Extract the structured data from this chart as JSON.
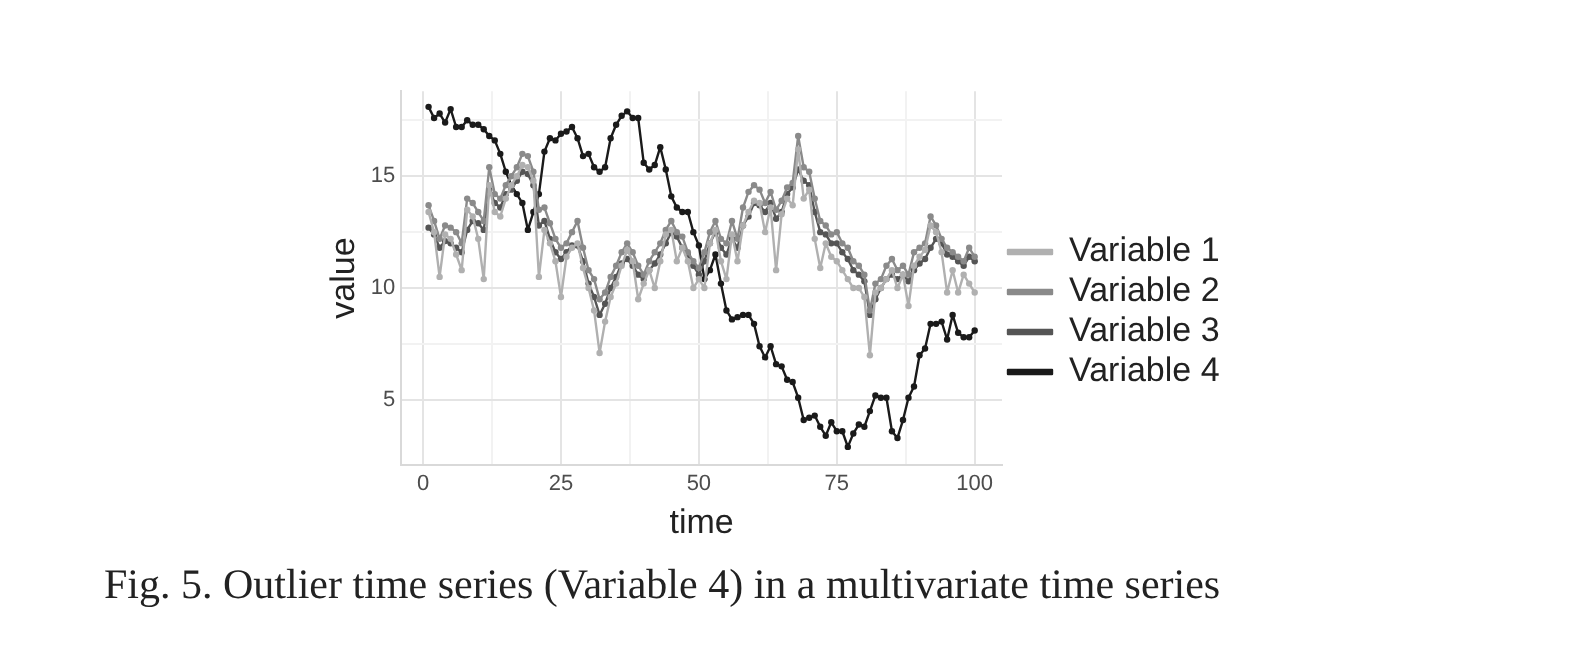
{
  "chart_data": {
    "type": "line",
    "xlabel": "time",
    "ylabel": "value",
    "annotations": [
      "Fig. 5.  Outlier time series (Variable 4) in a multivariate time series"
    ],
    "x": [
      1,
      2,
      3,
      4,
      5,
      6,
      7,
      8,
      9,
      10,
      11,
      12,
      13,
      14,
      15,
      16,
      17,
      18,
      19,
      20,
      21,
      22,
      23,
      24,
      25,
      26,
      27,
      28,
      29,
      30,
      31,
      32,
      33,
      34,
      35,
      36,
      37,
      38,
      39,
      40,
      41,
      42,
      43,
      44,
      45,
      46,
      47,
      48,
      49,
      50,
      51,
      52,
      53,
      54,
      55,
      56,
      57,
      58,
      59,
      60,
      61,
      62,
      63,
      64,
      65,
      66,
      67,
      68,
      69,
      70,
      71,
      72,
      73,
      74,
      75,
      76,
      77,
      78,
      79,
      80,
      81,
      82,
      83,
      84,
      85,
      86,
      87,
      88,
      89,
      90,
      91,
      92,
      93,
      94,
      95,
      96,
      97,
      98,
      99,
      100
    ],
    "series": [
      {
        "name": "Variable 1",
        "color": "#b0b0b0",
        "values": [
          13.4,
          12.5,
          10.5,
          12.4,
          12.2,
          11.5,
          10.8,
          13.5,
          13.2,
          12.2,
          10.4,
          14.6,
          13.4,
          13.2,
          14.0,
          14.6,
          15.0,
          15.5,
          15.4,
          14.8,
          10.5,
          12.6,
          12.0,
          11.2,
          9.6,
          11.4,
          11.8,
          12.0,
          10.9,
          10.0,
          9.0,
          7.1,
          8.5,
          9.6,
          10.2,
          11.0,
          11.7,
          11.2,
          9.5,
          10.2,
          10.8,
          10.0,
          11.2,
          12.4,
          12.6,
          11.2,
          11.8,
          11.2,
          10.0,
          10.4,
          10.0,
          12.0,
          12.6,
          11.2,
          10.4,
          12.4,
          11.2,
          12.8,
          13.4,
          13.9,
          13.8,
          12.5,
          13.6,
          10.8,
          13.3,
          14.0,
          13.7,
          16.2,
          14.0,
          14.4,
          12.2,
          10.9,
          12.0,
          11.4,
          11.2,
          10.8,
          10.4,
          10.0,
          10.0,
          9.6,
          7.0,
          9.8,
          10.0,
          10.4,
          10.8,
          10.0,
          10.6,
          9.2,
          11.0,
          11.4,
          11.7,
          12.8,
          12.5,
          11.6,
          9.8,
          10.8,
          9.8,
          10.6,
          10.2,
          9.8
        ]
      },
      {
        "name": "Variable 2",
        "color": "#8a8a8a",
        "values": [
          13.7,
          13.0,
          12.2,
          12.8,
          12.7,
          12.5,
          12.0,
          14.0,
          13.8,
          13.4,
          13.0,
          15.4,
          14.2,
          14.0,
          14.6,
          15.0,
          15.4,
          16.0,
          15.9,
          15.2,
          13.5,
          13.6,
          12.9,
          12.2,
          11.8,
          12.0,
          12.5,
          13.0,
          11.8,
          10.8,
          10.4,
          9.5,
          9.8,
          10.5,
          11.0,
          11.6,
          12.0,
          11.6,
          11.0,
          10.6,
          11.2,
          11.6,
          12.0,
          12.6,
          13.0,
          12.5,
          12.3,
          11.6,
          11.2,
          10.9,
          11.6,
          12.5,
          13.0,
          12.2,
          12.0,
          13.0,
          12.2,
          13.6,
          14.3,
          14.6,
          14.4,
          13.8,
          14.3,
          13.5,
          13.9,
          14.5,
          14.7,
          16.8,
          15.4,
          15.2,
          14.0,
          13.0,
          12.8,
          12.4,
          12.5,
          12.0,
          11.8,
          11.2,
          11.0,
          10.6,
          9.0,
          10.2,
          10.4,
          11.0,
          11.3,
          10.8,
          11.0,
          10.6,
          11.6,
          11.8,
          12.0,
          13.2,
          12.8,
          12.2,
          11.8,
          11.6,
          11.4,
          11.2,
          11.8,
          11.4
        ]
      },
      {
        "name": "Variable 3",
        "color": "#555555",
        "values": [
          12.7,
          12.4,
          11.8,
          12.1,
          12.0,
          11.8,
          11.6,
          12.6,
          13.0,
          12.9,
          12.6,
          14.4,
          13.8,
          13.6,
          14.2,
          14.4,
          14.8,
          15.2,
          15.1,
          14.6,
          12.8,
          13.0,
          12.2,
          11.6,
          11.3,
          11.6,
          11.9,
          11.9,
          11.2,
          10.2,
          9.6,
          8.8,
          9.3,
          10.0,
          10.5,
          11.1,
          11.3,
          11.0,
          10.6,
          10.4,
          10.8,
          11.1,
          11.5,
          12.0,
          12.5,
          12.3,
          11.8,
          11.5,
          11.0,
          10.6,
          11.2,
          12.0,
          12.5,
          11.8,
          11.5,
          12.2,
          11.8,
          12.8,
          13.2,
          13.8,
          13.7,
          13.4,
          13.8,
          13.1,
          13.4,
          14.2,
          14.5,
          15.3,
          14.8,
          14.6,
          13.4,
          12.5,
          12.4,
          12.0,
          12.0,
          11.6,
          11.3,
          10.8,
          10.6,
          10.3,
          8.8,
          9.5,
          10.0,
          10.4,
          10.6,
          10.4,
          10.6,
          10.3,
          10.8,
          11.1,
          11.3,
          11.8,
          12.2,
          12.0,
          11.5,
          11.4,
          11.2,
          11.0,
          11.4,
          11.2
        ]
      },
      {
        "name": "Variable 4",
        "color": "#1a1a1a",
        "values": [
          18.1,
          17.6,
          17.8,
          17.4,
          18.0,
          17.2,
          17.2,
          17.5,
          17.3,
          17.3,
          17.1,
          16.8,
          16.6,
          16.0,
          15.2,
          14.6,
          14.2,
          13.8,
          12.6,
          13.4,
          14.2,
          16.1,
          16.7,
          16.6,
          16.9,
          17.0,
          17.2,
          16.7,
          15.9,
          16.0,
          15.4,
          15.2,
          15.4,
          16.7,
          17.3,
          17.7,
          17.9,
          17.6,
          17.6,
          15.6,
          15.3,
          15.5,
          16.3,
          15.3,
          14.1,
          13.6,
          13.4,
          13.4,
          12.5,
          11.9,
          10.4,
          10.8,
          11.5,
          10.2,
          9.0,
          8.6,
          8.7,
          8.8,
          8.8,
          8.4,
          7.4,
          6.9,
          7.4,
          6.6,
          6.5,
          5.9,
          5.8,
          5.1,
          4.1,
          4.2,
          4.3,
          3.8,
          3.4,
          4.0,
          3.6,
          3.6,
          2.9,
          3.5,
          3.9,
          3.8,
          4.5,
          5.2,
          5.1,
          5.1,
          3.6,
          3.3,
          4.1,
          5.1,
          5.6,
          7.0,
          7.3,
          8.4,
          8.4,
          8.5,
          7.7,
          8.8,
          8.0,
          7.8,
          7.8,
          8.1
        ]
      }
    ],
    "xlim": [
      -3.95,
      104.95
    ],
    "xticks": [
      0,
      {
        "value": 12.5,
        "label": null
      },
      25,
      {
        "value": 37.5,
        "label": null
      },
      50,
      {
        "value": 62.5,
        "label": null
      },
      75,
      {
        "value": 87.5,
        "label": null
      },
      100
    ],
    "ylim": [
      2.1,
      18.8
    ],
    "yticks": [
      5,
      {
        "value": 7.5,
        "label": null
      },
      10,
      {
        "value": 12.5,
        "label": null
      },
      15,
      {
        "value": 17.5,
        "label": null
      }
    ],
    "grid": true,
    "legend": "right",
    "marker": "circle",
    "line_style": "solid"
  }
}
